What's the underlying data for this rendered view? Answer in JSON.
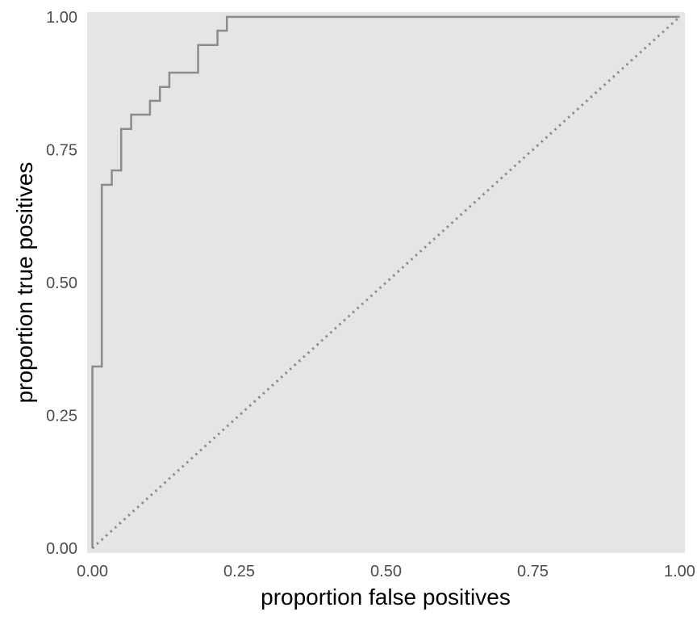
{
  "chart_data": {
    "type": "line",
    "title": "",
    "xlabel": "proportion false positives",
    "ylabel": "proportion true positives",
    "xlim": [
      0,
      1
    ],
    "ylim": [
      0,
      1
    ],
    "grid": false,
    "legend": "none",
    "x_ticks": [
      0,
      0.25,
      0.5,
      0.75,
      1
    ],
    "x_tick_labels": [
      "0.00",
      "0.25",
      "0.50",
      "0.75",
      "1.00"
    ],
    "y_ticks": [
      0,
      0.25,
      0.5,
      0.75,
      1
    ],
    "y_tick_labels": [
      "0.00",
      "0.25",
      "0.50",
      "0.75",
      "1.00"
    ],
    "series": [
      {
        "style": "solid",
        "x": [
          0,
          0,
          0.016,
          0.016,
          0.033,
          0.033,
          0.049,
          0.049,
          0.066,
          0.066,
          0.098,
          0.098,
          0.115,
          0.115,
          0.131,
          0.131,
          0.18,
          0.18,
          0.213,
          0.213,
          0.229,
          0.229,
          1
        ],
        "y": [
          0,
          0.342,
          0.342,
          0.684,
          0.684,
          0.711,
          0.711,
          0.789,
          0.789,
          0.816,
          0.816,
          0.842,
          0.842,
          0.868,
          0.868,
          0.895,
          0.895,
          0.947,
          0.947,
          0.974,
          0.974,
          1,
          1
        ]
      },
      {
        "style": "dotted",
        "x": [
          0,
          1
        ],
        "y": [
          0,
          1
        ]
      }
    ],
    "colors": {
      "panel": "#e5e5e5",
      "roc_line": "#8c8c8c",
      "diagonal": "#8c8c8c"
    }
  }
}
